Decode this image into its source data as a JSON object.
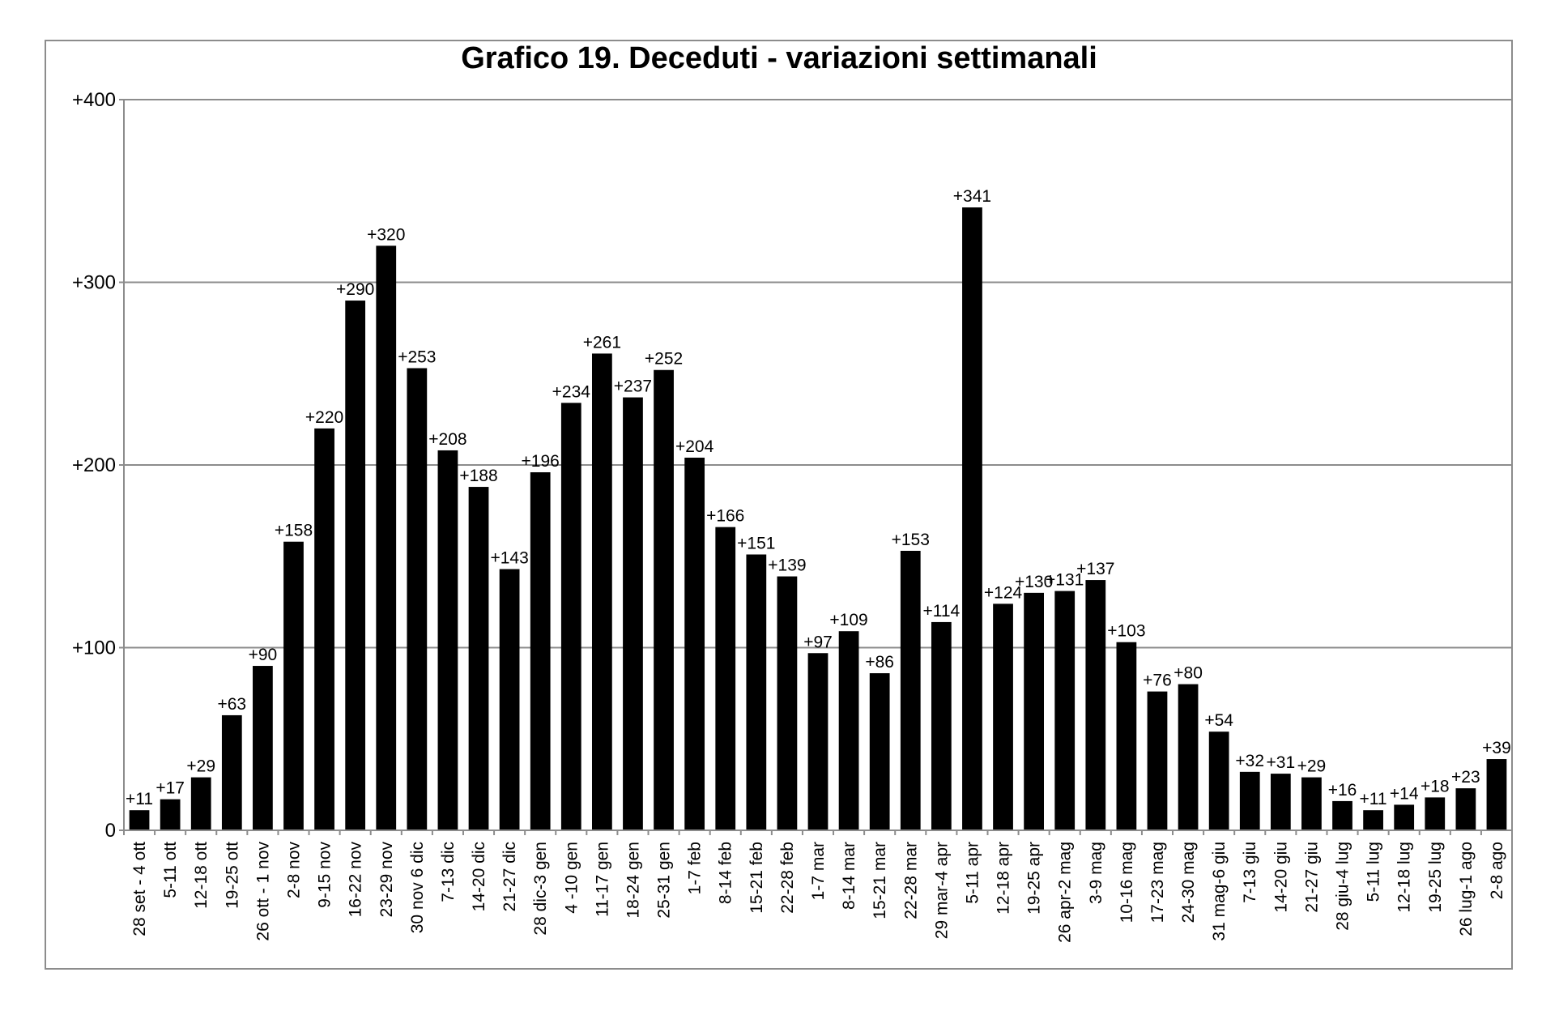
{
  "chart_data": {
    "type": "bar",
    "title": "Grafico 19. Deceduti - variazioni settimanali",
    "xlabel": "",
    "ylabel": "",
    "ylim": [
      0,
      400
    ],
    "yticks": [
      0,
      100,
      200,
      300,
      400
    ],
    "ytick_labels": [
      "0",
      "+100",
      "+200",
      "+300",
      "+400"
    ],
    "grid": true,
    "legend": "none",
    "bar_color": "#000000",
    "grid_color": "#8c8c8c",
    "categories": [
      "28 set - 4 ott",
      "5-11 ott",
      "12-18 ott",
      "19-25 ott",
      "26 ott - 1 nov",
      "2-8 nov",
      "9-15 nov",
      "16-22 nov",
      "23-29 nov",
      "30 nov 6 dic",
      "7-13 dic",
      "14-20 dic",
      "21-27 dic",
      "28 dic-3 gen",
      "4 -10 gen",
      "11-17 gen",
      "18-24 gen",
      "25-31 gen",
      "1-7 feb",
      "8-14 feb",
      "15-21 feb",
      "22-28 feb",
      "1-7 mar",
      "8-14 mar",
      "15-21 mar",
      "22-28 mar",
      "29 mar-4 apr",
      "5-11 apr",
      "12-18 apr",
      "19-25 apr",
      "26 apr-2 mag",
      "3-9 mag",
      "10-16 mag",
      "17-23 mag",
      "24-30 mag",
      "31 mag-6 giu",
      "7-13 giu",
      "14-20 giu",
      "21-27 giu",
      "28 giu-4 lug",
      "5-11 lug",
      "12-18 lug",
      "19-25 lug",
      "26 lug-1 ago",
      "2-8 ago"
    ],
    "values": [
      11,
      17,
      29,
      63,
      90,
      158,
      220,
      290,
      320,
      253,
      208,
      188,
      143,
      196,
      234,
      261,
      237,
      252,
      204,
      166,
      151,
      139,
      97,
      109,
      86,
      153,
      114,
      341,
      124,
      130,
      131,
      137,
      103,
      76,
      80,
      54,
      32,
      31,
      29,
      16,
      11,
      14,
      18,
      23,
      39
    ],
    "data_labels": [
      "+11",
      "+17",
      "+29",
      "+63",
      "+90",
      "+158",
      "+220",
      "+290",
      "+320",
      "+253",
      "+208",
      "+188",
      "+143",
      "+196",
      "+234",
      "+261",
      "+237",
      "+252",
      "+204",
      "+166",
      "+151",
      "+139",
      "+97",
      "+109",
      "+86",
      "+153",
      "+114",
      "+341",
      "+124",
      "+130",
      "+131",
      "+137",
      "+103",
      "+76",
      "+80",
      "+54",
      "+32",
      "+31",
      "+29",
      "+16",
      "+11",
      "+14",
      "+18",
      "+23",
      "+39"
    ]
  }
}
